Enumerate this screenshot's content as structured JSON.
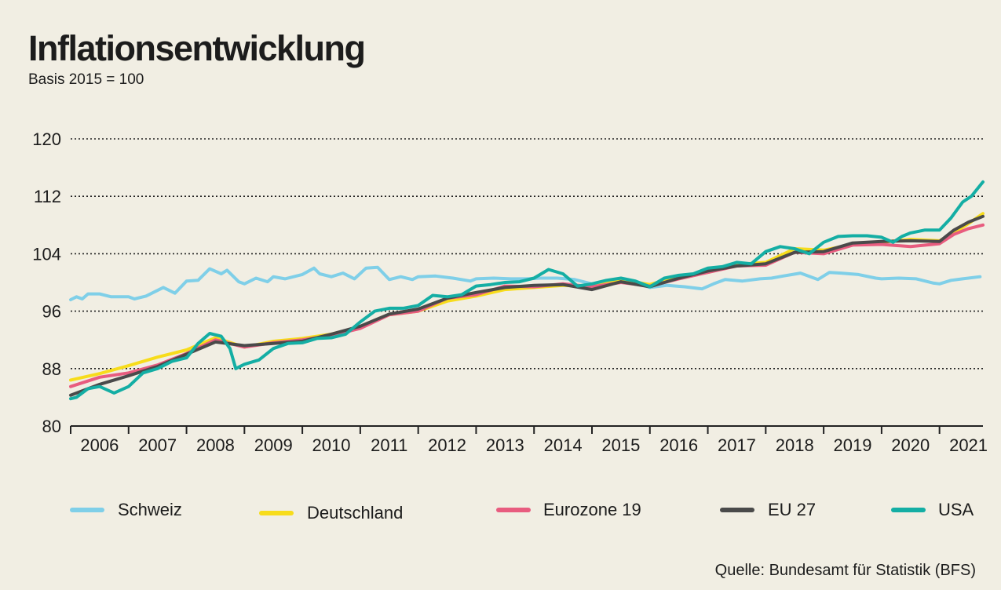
{
  "title": "Inflationsentwicklung",
  "subtitle": "Basis 2015 = 100",
  "source": "Quelle: Bundesamt für Statistik (BFS)",
  "chart_data": {
    "type": "line",
    "title": "Inflationsentwicklung",
    "subtitle": "Basis 2015 = 100",
    "xlabel": "",
    "ylabel": "",
    "ylim": [
      80,
      120
    ],
    "yticks": [
      80,
      88,
      96,
      104,
      112,
      120
    ],
    "xlim": [
      2006,
      2021.75
    ],
    "xticks": [
      "2006",
      "2007",
      "2008",
      "2009",
      "2010",
      "2011",
      "2012",
      "2013",
      "2014",
      "2015",
      "2016",
      "2017",
      "2018",
      "2019",
      "2020",
      "2021"
    ],
    "grid": "horizontal dotted",
    "legend_position": "bottom",
    "series": [
      {
        "name": "Schweiz",
        "color": "#7fcfe8",
        "x": [
          2006.0,
          2006.1,
          2006.2,
          2006.3,
          2006.5,
          2006.7,
          2007.0,
          2007.1,
          2007.3,
          2007.6,
          2007.8,
          2008.0,
          2008.2,
          2008.4,
          2008.6,
          2008.7,
          2008.9,
          2009.0,
          2009.2,
          2009.4,
          2009.5,
          2009.7,
          2010.0,
          2010.2,
          2010.3,
          2010.5,
          2010.7,
          2010.9,
          2011.1,
          2011.3,
          2011.5,
          2011.7,
          2011.9,
          2012.0,
          2012.3,
          2012.6,
          2012.9,
          2013.0,
          2013.3,
          2013.6,
          2013.9,
          2014.1,
          2014.4,
          2014.7,
          2015.0,
          2015.2,
          2015.5,
          2015.8,
          2016.0,
          2016.3,
          2016.6,
          2016.9,
          2017.1,
          2017.3,
          2017.6,
          2017.9,
          2018.1,
          2018.3,
          2018.6,
          2018.9,
          2019.1,
          2019.3,
          2019.6,
          2019.9,
          2020.0,
          2020.3,
          2020.6,
          2020.9,
          2021.0,
          2021.2,
          2021.4,
          2021.7
        ],
        "y": [
          97.6,
          98.0,
          97.7,
          98.4,
          98.4,
          98.0,
          98.0,
          97.7,
          98.1,
          99.3,
          98.5,
          100.2,
          100.3,
          101.9,
          101.2,
          101.7,
          100.1,
          99.8,
          100.6,
          100.1,
          100.8,
          100.5,
          101.1,
          102.0,
          101.2,
          100.8,
          101.3,
          100.5,
          102.0,
          102.1,
          100.4,
          100.8,
          100.4,
          100.8,
          100.9,
          100.6,
          100.2,
          100.5,
          100.6,
          100.5,
          100.5,
          100.6,
          100.6,
          100.4,
          99.8,
          99.9,
          100.2,
          99.8,
          99.3,
          99.6,
          99.4,
          99.1,
          99.8,
          100.4,
          100.2,
          100.5,
          100.6,
          100.9,
          101.3,
          100.4,
          101.4,
          101.3,
          101.1,
          100.6,
          100.5,
          100.6,
          100.5,
          99.9,
          99.8,
          100.3,
          100.5,
          100.8
        ]
      },
      {
        "name": "Deutschland",
        "color": "#f7dc1b",
        "x": [
          2006.0,
          2006.5,
          2007.0,
          2007.5,
          2008.0,
          2008.5,
          2009.0,
          2009.5,
          2010.0,
          2010.5,
          2011.0,
          2011.5,
          2012.0,
          2012.5,
          2013.0,
          2013.5,
          2014.0,
          2014.5,
          2015.0,
          2015.5,
          2016.0,
          2016.5,
          2017.0,
          2017.5,
          2018.0,
          2018.5,
          2019.0,
          2019.5,
          2020.0,
          2020.5,
          2021.0,
          2021.25,
          2021.5,
          2021.75
        ],
        "y": [
          86.4,
          87.3,
          88.4,
          89.6,
          90.6,
          92.3,
          91.0,
          91.8,
          92.2,
          92.8,
          93.8,
          95.5,
          96.0,
          97.4,
          98.1,
          99.0,
          99.3,
          99.6,
          99.4,
          100.4,
          99.7,
          100.9,
          101.4,
          102.5,
          102.8,
          104.7,
          104.5,
          105.3,
          105.6,
          106.0,
          105.8,
          106.9,
          108.2,
          109.6
        ]
      },
      {
        "name": "Eurozone 19",
        "color": "#e85c7f",
        "x": [
          2006.0,
          2006.5,
          2007.0,
          2007.5,
          2008.0,
          2008.5,
          2009.0,
          2009.5,
          2010.0,
          2010.5,
          2011.0,
          2011.5,
          2012.0,
          2012.5,
          2013.0,
          2013.5,
          2014.0,
          2014.5,
          2015.0,
          2015.5,
          2016.0,
          2016.5,
          2017.0,
          2017.5,
          2018.0,
          2018.5,
          2019.0,
          2019.5,
          2020.0,
          2020.5,
          2021.0,
          2021.25,
          2021.5,
          2021.75
        ],
        "y": [
          85.5,
          86.8,
          87.4,
          88.5,
          90.1,
          92.0,
          91.0,
          91.6,
          92.0,
          92.6,
          93.6,
          95.5,
          96.0,
          97.8,
          98.3,
          99.5,
          99.4,
          99.8,
          99.4,
          100.0,
          99.5,
          100.5,
          101.4,
          102.3,
          102.4,
          104.2,
          104.0,
          105.2,
          105.3,
          105.0,
          105.4,
          106.7,
          107.5,
          108.0
        ]
      },
      {
        "name": "EU 27",
        "color": "#4a4a4a",
        "x": [
          2006.0,
          2006.5,
          2007.0,
          2007.5,
          2008.0,
          2008.5,
          2009.0,
          2009.5,
          2010.0,
          2010.5,
          2011.0,
          2011.5,
          2012.0,
          2012.5,
          2013.0,
          2013.5,
          2014.0,
          2014.5,
          2015.0,
          2015.5,
          2016.0,
          2016.5,
          2017.0,
          2017.5,
          2018.0,
          2018.5,
          2019.0,
          2019.5,
          2020.0,
          2020.5,
          2021.0,
          2021.25,
          2021.5,
          2021.75
        ],
        "y": [
          84.3,
          85.8,
          87.0,
          88.3,
          90.0,
          91.7,
          91.2,
          91.5,
          91.8,
          92.8,
          93.9,
          95.6,
          96.3,
          97.8,
          98.6,
          99.3,
          99.6,
          99.7,
          99.0,
          100.1,
          99.4,
          100.6,
          101.6,
          102.3,
          102.6,
          104.2,
          104.3,
          105.5,
          105.7,
          105.8,
          105.7,
          107.3,
          108.4,
          109.2
        ]
      },
      {
        "name": "USA",
        "color": "#14aea4",
        "x": [
          2006.0,
          2006.1,
          2006.3,
          2006.5,
          2006.75,
          2007.0,
          2007.25,
          2007.5,
          2007.75,
          2008.0,
          2008.2,
          2008.4,
          2008.6,
          2008.75,
          2008.85,
          2009.0,
          2009.25,
          2009.5,
          2009.75,
          2010.0,
          2010.25,
          2010.5,
          2010.75,
          2011.0,
          2011.25,
          2011.5,
          2011.75,
          2012.0,
          2012.25,
          2012.5,
          2012.75,
          2013.0,
          2013.25,
          2013.5,
          2013.75,
          2014.0,
          2014.25,
          2014.5,
          2014.75,
          2015.0,
          2015.25,
          2015.5,
          2015.75,
          2016.0,
          2016.25,
          2016.5,
          2016.75,
          2017.0,
          2017.25,
          2017.5,
          2017.75,
          2018.0,
          2018.25,
          2018.5,
          2018.75,
          2019.0,
          2019.25,
          2019.5,
          2019.75,
          2020.0,
          2020.2,
          2020.35,
          2020.5,
          2020.75,
          2021.0,
          2021.2,
          2021.4,
          2021.55,
          2021.75
        ],
        "y": [
          83.8,
          84.0,
          85.2,
          85.5,
          84.6,
          85.5,
          87.4,
          88.0,
          89.0,
          89.5,
          91.5,
          92.9,
          92.5,
          90.8,
          88.0,
          88.6,
          89.2,
          90.8,
          91.5,
          91.6,
          92.2,
          92.3,
          92.8,
          94.5,
          96.0,
          96.4,
          96.4,
          96.8,
          98.2,
          98.0,
          98.3,
          99.5,
          99.7,
          100.0,
          100.1,
          100.6,
          101.8,
          101.2,
          99.5,
          99.8,
          100.3,
          100.6,
          100.2,
          99.4,
          100.6,
          101.0,
          101.2,
          102.0,
          102.2,
          102.8,
          102.6,
          104.3,
          105.0,
          104.7,
          104.0,
          105.6,
          106.4,
          106.5,
          106.5,
          106.3,
          105.6,
          106.4,
          106.9,
          107.3,
          107.3,
          109.0,
          111.2,
          112.0,
          114.0
        ]
      }
    ]
  }
}
